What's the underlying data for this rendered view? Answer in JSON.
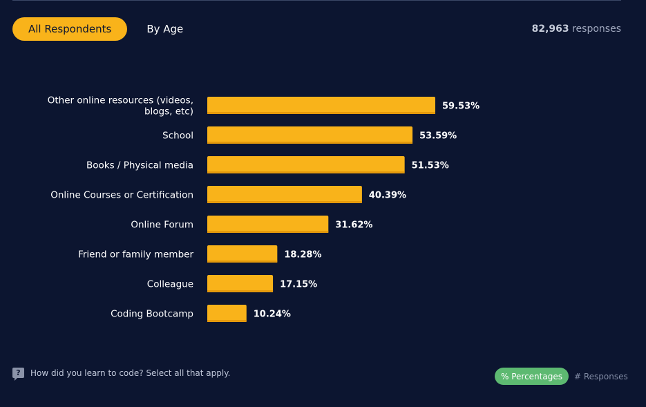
{
  "tabs": {
    "active_label": "All Respondents",
    "other_label": "By Age"
  },
  "responses": {
    "count": "82,963",
    "suffix": "responses"
  },
  "colors": {
    "bar": "#f9b31a",
    "background": "#0c1530",
    "active_toggle": "#5db971"
  },
  "chart_data": {
    "type": "bar",
    "orientation": "horizontal",
    "categories": [
      "Other online resources (videos, blogs, etc)",
      "School",
      "Books / Physical media",
      "Online Courses or Certification",
      "Online Forum",
      "Friend or family member",
      "Colleague",
      "Coding Bootcamp"
    ],
    "category_lines": [
      [
        "Other online resources (videos,",
        "blogs, etc)"
      ],
      [
        "School"
      ],
      [
        "Books / Physical media"
      ],
      [
        "Online Courses or Certification"
      ],
      [
        "Online Forum"
      ],
      [
        "Friend or family member"
      ],
      [
        "Colleague"
      ],
      [
        "Coding Bootcamp"
      ]
    ],
    "values": [
      59.53,
      53.59,
      51.53,
      40.39,
      31.62,
      18.28,
      17.15,
      10.24
    ],
    "value_labels": [
      "59.53%",
      "53.59%",
      "51.53%",
      "40.39%",
      "31.62%",
      "18.28%",
      "17.15%",
      "10.24%"
    ],
    "grid": false
  },
  "footer": {
    "question": "How did you learn to code? Select all that apply.",
    "toggle_active": "% Percentages",
    "toggle_other": "# Responses"
  }
}
